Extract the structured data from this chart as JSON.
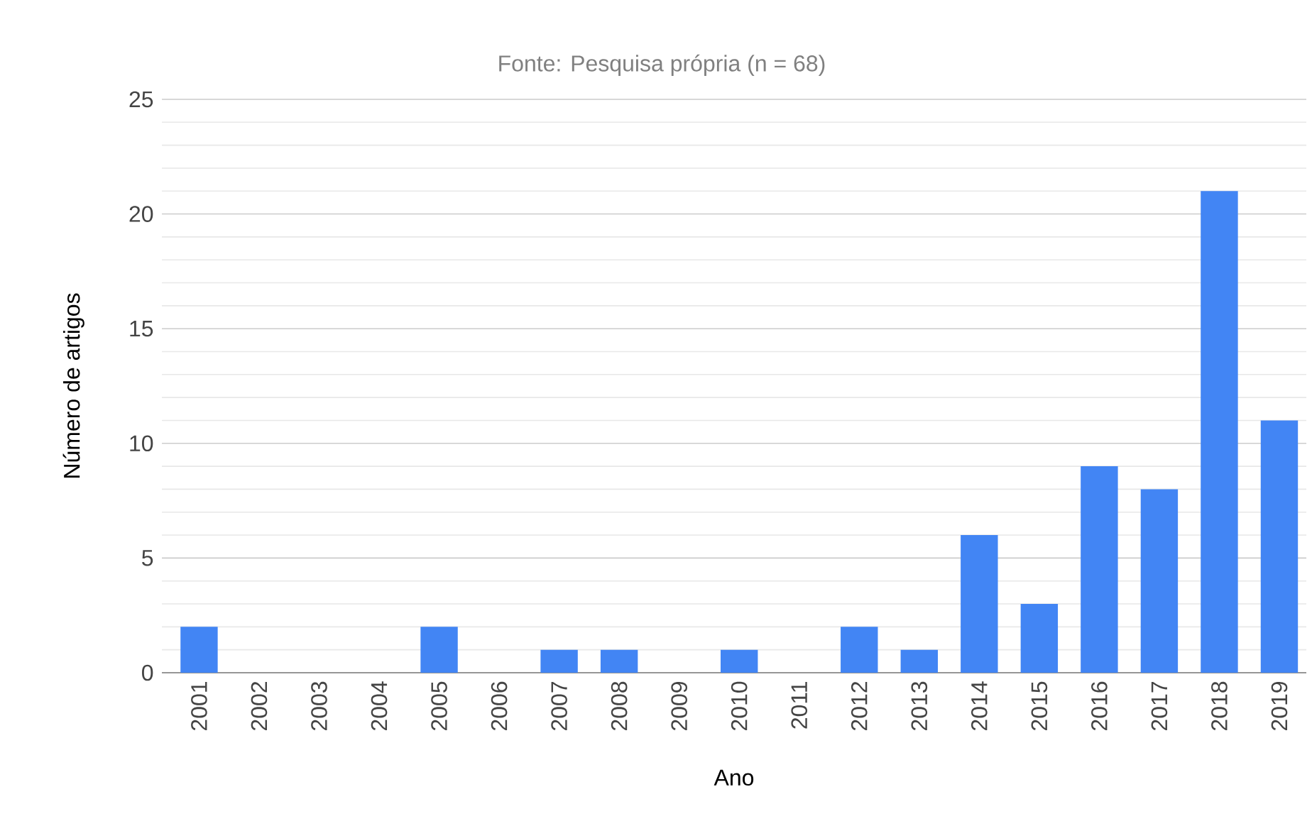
{
  "chart_data": {
    "type": "bar",
    "subtitle": "Fonte: Pesquisa própria (n = 68)",
    "xlabel": "Ano",
    "ylabel": "Número de artigos",
    "categories": [
      "2001",
      "2002",
      "2003",
      "2004",
      "2005",
      "2006",
      "2007",
      "2008",
      "2009",
      "2010",
      "2011",
      "2012",
      "2013",
      "2014",
      "2015",
      "2016",
      "2017",
      "2018",
      "2019"
    ],
    "values": [
      2,
      0,
      0,
      0,
      2,
      0,
      1,
      1,
      0,
      1,
      0,
      2,
      1,
      6,
      3,
      9,
      8,
      21,
      11
    ],
    "color": "#4285f4",
    "ylim": [
      0,
      25
    ],
    "yticks": [
      0,
      {
        "value": 1,
        "label": null
      },
      {
        "value": 2,
        "label": null
      },
      {
        "value": 3,
        "label": null
      },
      {
        "value": 4,
        "label": null
      },
      5,
      {
        "value": 6,
        "label": null
      },
      {
        "value": 7,
        "label": null
      },
      {
        "value": 8,
        "label": null
      },
      {
        "value": 9,
        "label": null
      },
      10,
      {
        "value": 11,
        "label": null
      },
      {
        "value": 12,
        "label": null
      },
      {
        "value": 13,
        "label": null
      },
      {
        "value": 14,
        "label": null
      },
      15,
      {
        "value": 16,
        "label": null
      },
      {
        "value": 17,
        "label": null
      },
      {
        "value": 18,
        "label": null
      },
      {
        "value": 19,
        "label": null
      },
      20,
      {
        "value": 21,
        "label": null
      },
      {
        "value": 22,
        "label": null
      },
      {
        "value": 23,
        "label": null
      },
      {
        "value": 24,
        "label": null
      },
      25
    ],
    "grid": "y"
  }
}
